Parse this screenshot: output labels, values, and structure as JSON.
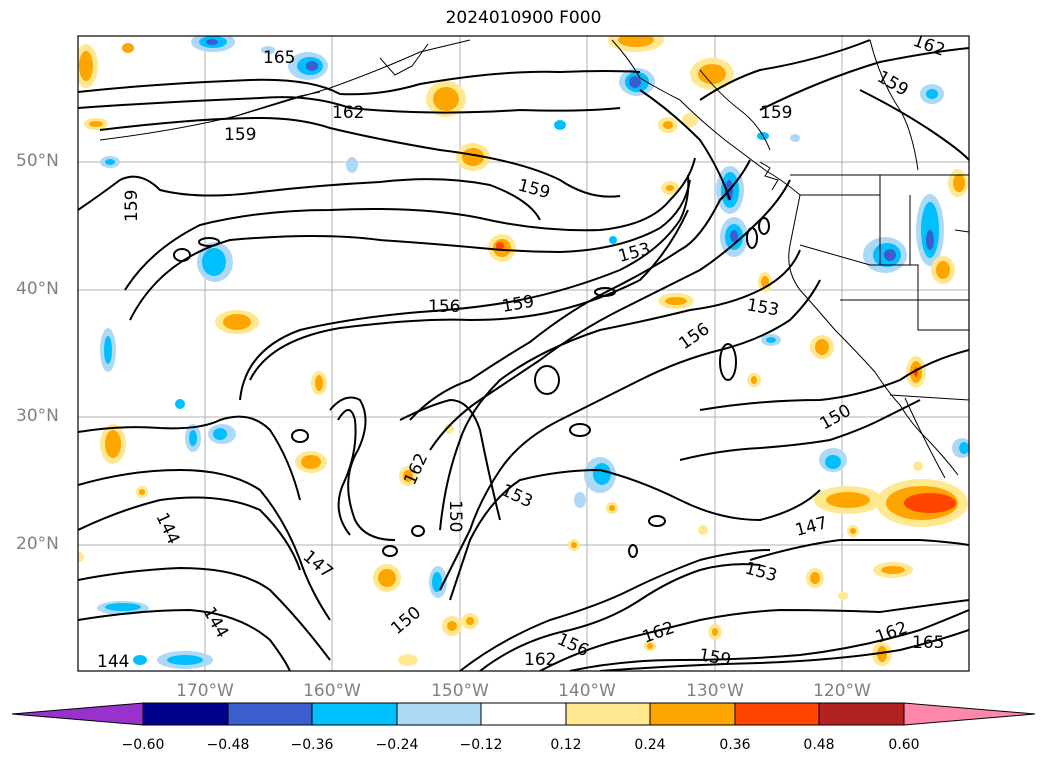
{
  "title": "2024010900 F000",
  "map": {
    "lat_labels": [
      "50°N",
      "40°N",
      "30°N",
      "20°N"
    ],
    "lon_labels": [
      "170°W",
      "160°W",
      "150°W",
      "140°W",
      "130°W",
      "120°W"
    ],
    "contour_labels": [
      {
        "text": "165"
      },
      {
        "text": "162"
      },
      {
        "text": "159"
      },
      {
        "text": "159"
      },
      {
        "text": "162"
      },
      {
        "text": "159"
      },
      {
        "text": "159"
      },
      {
        "text": "159"
      },
      {
        "text": "153"
      },
      {
        "text": "156"
      },
      {
        "text": "159"
      },
      {
        "text": "153"
      },
      {
        "text": "156"
      },
      {
        "text": "150"
      },
      {
        "text": "162"
      },
      {
        "text": "153"
      },
      {
        "text": "150"
      },
      {
        "text": "144"
      },
      {
        "text": "147"
      },
      {
        "text": "147"
      },
      {
        "text": "153"
      },
      {
        "text": "144"
      },
      {
        "text": "150"
      },
      {
        "text": "156"
      },
      {
        "text": "162"
      },
      {
        "text": "162"
      },
      {
        "text": "159"
      },
      {
        "text": "162"
      },
      {
        "text": "165"
      },
      {
        "text": "144"
      }
    ]
  },
  "colorbar": {
    "ticks": [
      "−0.60",
      "−0.48",
      "−0.36",
      "−0.24",
      "−0.12",
      "0.12",
      "0.24",
      "0.36",
      "0.48",
      "0.60"
    ],
    "colors": [
      "#9932cc",
      "#00008b",
      "#3a5fcd",
      "#00bfff",
      "#add8f6",
      "#ffffff",
      "#ffe88f",
      "#ffa500",
      "#ff4500",
      "#b22222",
      "#ff88aa"
    ]
  }
}
